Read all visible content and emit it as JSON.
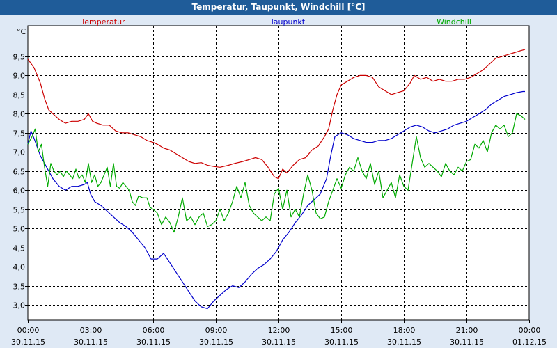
{
  "window": {
    "title": "Temperatur, Taupunkt, Windchill [°C]"
  },
  "colors": {
    "temperature": "#cc0000",
    "dewpoint": "#0000cc",
    "windchill": "#00aa00",
    "background": "#dfe9f5",
    "titlebar": "#1f5c99"
  },
  "chart_data": {
    "type": "line",
    "title": "Temperatur, Taupunkt, Windchill [°C]",
    "ylabel": "°C",
    "ylim": [
      2.6,
      10.3
    ],
    "xlim": [
      0,
      24
    ],
    "grid": true,
    "yticks": [
      3.0,
      3.5,
      4.0,
      4.5,
      5.0,
      5.5,
      6.0,
      6.5,
      7.0,
      7.5,
      8.0,
      8.5,
      9.0,
      9.5
    ],
    "ytick_labels": [
      "3,0",
      "3,5",
      "4,0",
      "4,5",
      "5,0",
      "5,5",
      "6,0",
      "6,5",
      "7,0",
      "7,5",
      "8,0",
      "8,5",
      "9,0",
      "9,5"
    ],
    "xticks": [
      {
        "hour": 0,
        "time": "00:00",
        "date": "30.11.15"
      },
      {
        "hour": 3,
        "time": "03:00",
        "date": "30.11.15"
      },
      {
        "hour": 6,
        "time": "06:00",
        "date": "30.11.15"
      },
      {
        "hour": 9,
        "time": "09:00",
        "date": "30.11.15"
      },
      {
        "hour": 12,
        "time": "12:00",
        "date": "30.11.15"
      },
      {
        "hour": 15,
        "time": "15:00",
        "date": "30.11.15"
      },
      {
        "hour": 18,
        "time": "18:00",
        "date": "30.11.15"
      },
      {
        "hour": 21,
        "time": "21:00",
        "date": "30.11.15"
      },
      {
        "hour": 24,
        "time": "00:00",
        "date": "01.12.15"
      }
    ],
    "series": [
      {
        "name": "Temperatur",
        "key": "temperature",
        "points": [
          [
            0,
            9.43
          ],
          [
            0.3,
            9.2
          ],
          [
            0.6,
            8.8
          ],
          [
            0.8,
            8.4
          ],
          [
            1.0,
            8.1
          ],
          [
            1.2,
            8.0
          ],
          [
            1.5,
            7.85
          ],
          [
            1.8,
            7.75
          ],
          [
            2.1,
            7.8
          ],
          [
            2.4,
            7.8
          ],
          [
            2.7,
            7.85
          ],
          [
            2.9,
            8.0
          ],
          [
            3.1,
            7.8
          ],
          [
            3.3,
            7.75
          ],
          [
            3.6,
            7.7
          ],
          [
            3.9,
            7.7
          ],
          [
            4.2,
            7.55
          ],
          [
            4.5,
            7.5
          ],
          [
            4.8,
            7.5
          ],
          [
            5.1,
            7.45
          ],
          [
            5.4,
            7.4
          ],
          [
            5.7,
            7.3
          ],
          [
            6.0,
            7.25
          ],
          [
            6.2,
            7.2
          ],
          [
            6.5,
            7.1
          ],
          [
            6.8,
            7.05
          ],
          [
            7.1,
            6.95
          ],
          [
            7.4,
            6.85
          ],
          [
            7.7,
            6.75
          ],
          [
            8.0,
            6.7
          ],
          [
            8.3,
            6.72
          ],
          [
            8.6,
            6.65
          ],
          [
            8.9,
            6.62
          ],
          [
            9.2,
            6.6
          ],
          [
            9.6,
            6.65
          ],
          [
            9.9,
            6.7
          ],
          [
            10.3,
            6.75
          ],
          [
            10.6,
            6.8
          ],
          [
            10.9,
            6.85
          ],
          [
            11.2,
            6.8
          ],
          [
            11.5,
            6.6
          ],
          [
            11.8,
            6.35
          ],
          [
            12.0,
            6.3
          ],
          [
            12.2,
            6.55
          ],
          [
            12.4,
            6.45
          ],
          [
            12.7,
            6.65
          ],
          [
            13.0,
            6.8
          ],
          [
            13.3,
            6.85
          ],
          [
            13.6,
            7.05
          ],
          [
            13.9,
            7.15
          ],
          [
            14.2,
            7.4
          ],
          [
            14.4,
            7.6
          ],
          [
            14.6,
            8.1
          ],
          [
            14.8,
            8.5
          ],
          [
            15.0,
            8.75
          ],
          [
            15.3,
            8.85
          ],
          [
            15.6,
            8.95
          ],
          [
            15.9,
            9.0
          ],
          [
            16.2,
            9.0
          ],
          [
            16.5,
            8.95
          ],
          [
            16.8,
            8.7
          ],
          [
            17.1,
            8.6
          ],
          [
            17.4,
            8.5
          ],
          [
            17.7,
            8.55
          ],
          [
            18.0,
            8.6
          ],
          [
            18.3,
            8.8
          ],
          [
            18.5,
            9.0
          ],
          [
            18.8,
            8.9
          ],
          [
            19.1,
            8.95
          ],
          [
            19.4,
            8.85
          ],
          [
            19.7,
            8.9
          ],
          [
            20.0,
            8.85
          ],
          [
            20.3,
            8.85
          ],
          [
            20.6,
            8.9
          ],
          [
            20.9,
            8.9
          ],
          [
            21.2,
            8.95
          ],
          [
            21.5,
            9.05
          ],
          [
            21.8,
            9.15
          ],
          [
            22.1,
            9.3
          ],
          [
            22.4,
            9.45
          ],
          [
            22.7,
            9.5
          ],
          [
            23.0,
            9.55
          ],
          [
            23.3,
            9.6
          ],
          [
            23.6,
            9.65
          ],
          [
            23.8,
            9.68
          ]
        ]
      },
      {
        "name": "Taupunkt",
        "key": "dewpoint",
        "points": [
          [
            0,
            7.2
          ],
          [
            0.15,
            7.55
          ],
          [
            0.3,
            7.35
          ],
          [
            0.6,
            6.9
          ],
          [
            0.9,
            6.6
          ],
          [
            1.2,
            6.3
          ],
          [
            1.5,
            6.1
          ],
          [
            1.8,
            6.0
          ],
          [
            2.1,
            6.1
          ],
          [
            2.4,
            6.1
          ],
          [
            2.7,
            6.15
          ],
          [
            2.85,
            6.2
          ],
          [
            3.0,
            5.9
          ],
          [
            3.2,
            5.7
          ],
          [
            3.5,
            5.6
          ],
          [
            3.8,
            5.45
          ],
          [
            4.1,
            5.3
          ],
          [
            4.4,
            5.15
          ],
          [
            4.7,
            5.05
          ],
          [
            5.0,
            4.9
          ],
          [
            5.3,
            4.7
          ],
          [
            5.6,
            4.5
          ],
          [
            5.9,
            4.2
          ],
          [
            6.2,
            4.2
          ],
          [
            6.5,
            4.35
          ],
          [
            6.8,
            4.1
          ],
          [
            7.1,
            3.85
          ],
          [
            7.4,
            3.6
          ],
          [
            7.7,
            3.35
          ],
          [
            8.0,
            3.1
          ],
          [
            8.3,
            2.95
          ],
          [
            8.6,
            2.9
          ],
          [
            8.9,
            3.1
          ],
          [
            9.2,
            3.25
          ],
          [
            9.5,
            3.4
          ],
          [
            9.8,
            3.5
          ],
          [
            10.1,
            3.45
          ],
          [
            10.4,
            3.6
          ],
          [
            10.7,
            3.8
          ],
          [
            11.0,
            3.95
          ],
          [
            11.3,
            4.05
          ],
          [
            11.6,
            4.2
          ],
          [
            11.9,
            4.4
          ],
          [
            12.2,
            4.7
          ],
          [
            12.5,
            4.9
          ],
          [
            12.8,
            5.15
          ],
          [
            13.1,
            5.35
          ],
          [
            13.4,
            5.6
          ],
          [
            13.7,
            5.75
          ],
          [
            14.0,
            5.9
          ],
          [
            14.3,
            6.3
          ],
          [
            14.5,
            6.9
          ],
          [
            14.7,
            7.4
          ],
          [
            15.0,
            7.5
          ],
          [
            15.3,
            7.45
          ],
          [
            15.6,
            7.35
          ],
          [
            15.9,
            7.3
          ],
          [
            16.2,
            7.25
          ],
          [
            16.5,
            7.25
          ],
          [
            16.8,
            7.3
          ],
          [
            17.1,
            7.3
          ],
          [
            17.4,
            7.35
          ],
          [
            17.7,
            7.45
          ],
          [
            18.0,
            7.55
          ],
          [
            18.3,
            7.65
          ],
          [
            18.6,
            7.7
          ],
          [
            18.9,
            7.65
          ],
          [
            19.2,
            7.55
          ],
          [
            19.5,
            7.5
          ],
          [
            19.8,
            7.55
          ],
          [
            20.1,
            7.6
          ],
          [
            20.4,
            7.7
          ],
          [
            20.7,
            7.75
          ],
          [
            21.0,
            7.8
          ],
          [
            21.3,
            7.9
          ],
          [
            21.6,
            8.0
          ],
          [
            21.9,
            8.1
          ],
          [
            22.2,
            8.25
          ],
          [
            22.5,
            8.35
          ],
          [
            22.8,
            8.45
          ],
          [
            23.1,
            8.5
          ],
          [
            23.4,
            8.55
          ],
          [
            23.7,
            8.58
          ],
          [
            23.8,
            8.58
          ]
        ]
      },
      {
        "name": "Windchill",
        "key": "windchill",
        "points": [
          [
            0,
            7.2
          ],
          [
            0.2,
            7.4
          ],
          [
            0.35,
            7.6
          ],
          [
            0.5,
            7.0
          ],
          [
            0.65,
            7.2
          ],
          [
            0.8,
            6.6
          ],
          [
            0.95,
            6.1
          ],
          [
            1.1,
            6.7
          ],
          [
            1.25,
            6.5
          ],
          [
            1.4,
            6.4
          ],
          [
            1.55,
            6.5
          ],
          [
            1.7,
            6.35
          ],
          [
            1.85,
            6.5
          ],
          [
            2.0,
            6.4
          ],
          [
            2.15,
            6.3
          ],
          [
            2.3,
            6.55
          ],
          [
            2.45,
            6.3
          ],
          [
            2.6,
            6.4
          ],
          [
            2.75,
            6.2
          ],
          [
            2.9,
            6.7
          ],
          [
            3.05,
            6.2
          ],
          [
            3.2,
            6.4
          ],
          [
            3.35,
            6.1
          ],
          [
            3.5,
            6.2
          ],
          [
            3.65,
            6.4
          ],
          [
            3.8,
            6.6
          ],
          [
            3.95,
            6.1
          ],
          [
            4.1,
            6.7
          ],
          [
            4.25,
            6.1
          ],
          [
            4.4,
            6.05
          ],
          [
            4.55,
            6.2
          ],
          [
            4.7,
            6.1
          ],
          [
            4.85,
            6.0
          ],
          [
            5.0,
            5.7
          ],
          [
            5.15,
            5.6
          ],
          [
            5.3,
            5.85
          ],
          [
            5.5,
            5.8
          ],
          [
            5.7,
            5.8
          ],
          [
            5.85,
            5.55
          ],
          [
            6.0,
            5.5
          ],
          [
            6.2,
            5.4
          ],
          [
            6.4,
            5.1
          ],
          [
            6.6,
            5.3
          ],
          [
            6.8,
            5.15
          ],
          [
            7.0,
            4.9
          ],
          [
            7.2,
            5.3
          ],
          [
            7.4,
            5.8
          ],
          [
            7.6,
            5.2
          ],
          [
            7.8,
            5.3
          ],
          [
            8.0,
            5.1
          ],
          [
            8.2,
            5.3
          ],
          [
            8.4,
            5.4
          ],
          [
            8.6,
            5.05
          ],
          [
            8.8,
            5.1
          ],
          [
            9.0,
            5.2
          ],
          [
            9.2,
            5.5
          ],
          [
            9.4,
            5.2
          ],
          [
            9.6,
            5.4
          ],
          [
            9.8,
            5.7
          ],
          [
            10.0,
            6.1
          ],
          [
            10.2,
            5.8
          ],
          [
            10.4,
            6.2
          ],
          [
            10.6,
            5.6
          ],
          [
            10.8,
            5.4
          ],
          [
            11.0,
            5.3
          ],
          [
            11.2,
            5.2
          ],
          [
            11.4,
            5.3
          ],
          [
            11.6,
            5.2
          ],
          [
            11.8,
            5.9
          ],
          [
            12.0,
            6.05
          ],
          [
            12.2,
            5.5
          ],
          [
            12.4,
            6.0
          ],
          [
            12.6,
            5.3
          ],
          [
            12.8,
            5.5
          ],
          [
            13.0,
            5.3
          ],
          [
            13.2,
            5.9
          ],
          [
            13.4,
            6.4
          ],
          [
            13.6,
            6.0
          ],
          [
            13.8,
            5.4
          ],
          [
            14.0,
            5.25
          ],
          [
            14.2,
            5.3
          ],
          [
            14.4,
            5.7
          ],
          [
            14.6,
            6.0
          ],
          [
            14.8,
            6.3
          ],
          [
            15.0,
            6.05
          ],
          [
            15.2,
            6.4
          ],
          [
            15.4,
            6.6
          ],
          [
            15.6,
            6.5
          ],
          [
            15.8,
            6.85
          ],
          [
            16.0,
            6.5
          ],
          [
            16.2,
            6.3
          ],
          [
            16.4,
            6.7
          ],
          [
            16.6,
            6.15
          ],
          [
            16.8,
            6.5
          ],
          [
            17.0,
            5.8
          ],
          [
            17.2,
            6.0
          ],
          [
            17.4,
            6.2
          ],
          [
            17.6,
            5.8
          ],
          [
            17.8,
            6.4
          ],
          [
            18.0,
            6.1
          ],
          [
            18.2,
            6.0
          ],
          [
            18.4,
            6.7
          ],
          [
            18.6,
            7.4
          ],
          [
            18.8,
            6.85
          ],
          [
            19.0,
            6.6
          ],
          [
            19.2,
            6.7
          ],
          [
            19.4,
            6.6
          ],
          [
            19.6,
            6.5
          ],
          [
            19.8,
            6.35
          ],
          [
            20.0,
            6.7
          ],
          [
            20.2,
            6.5
          ],
          [
            20.4,
            6.4
          ],
          [
            20.6,
            6.6
          ],
          [
            20.8,
            6.5
          ],
          [
            21.0,
            6.75
          ],
          [
            21.2,
            6.8
          ],
          [
            21.4,
            7.2
          ],
          [
            21.6,
            7.1
          ],
          [
            21.8,
            7.3
          ],
          [
            22.0,
            7.0
          ],
          [
            22.2,
            7.5
          ],
          [
            22.4,
            7.7
          ],
          [
            22.6,
            7.6
          ],
          [
            22.8,
            7.7
          ],
          [
            23.0,
            7.4
          ],
          [
            23.2,
            7.5
          ],
          [
            23.4,
            8.0
          ],
          [
            23.6,
            7.95
          ],
          [
            23.8,
            7.85
          ]
        ]
      }
    ]
  }
}
